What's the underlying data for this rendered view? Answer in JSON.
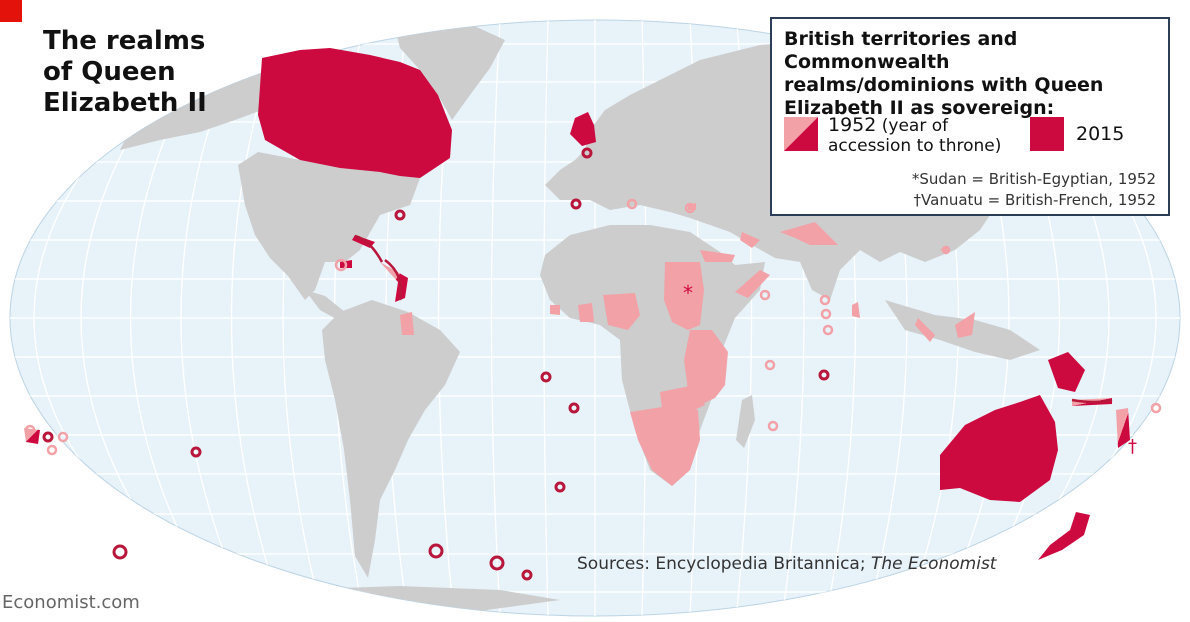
{
  "title": {
    "line1": "The realms",
    "line2": "of Queen",
    "line3": "Elizabeth II"
  },
  "legend": {
    "title_line1": "British territories and Commonwealth",
    "title_line2": "realms/dominions with Queen",
    "title_line3": "Elizabeth II as sovereign:",
    "key_1952_year": "1952",
    "key_1952_suffix": "(year of",
    "key_1952_line2": "accession to throne)",
    "key_2015": "2015",
    "note_sudan": "*Sudan = British-Egyptian, 1952",
    "note_vanuatu": "†Vanuatu = British-French, 1952"
  },
  "source": {
    "prefix": "Sources: Encyclopedia Britannica; ",
    "italic": "The Economist"
  },
  "footer": "Economist.com",
  "map_markers": {
    "sudan": "*",
    "vanuatu": "†"
  },
  "colors": {
    "ocean": "#e7f2f9",
    "grid": "#ffffff",
    "land": "#cdcdcd",
    "realm_1952": "#f2a1a7",
    "realm_2015": "#cc0a3f",
    "ring": "#b8163a",
    "brand_red": "#e3120b",
    "legend_border": "#2c3e57"
  }
}
